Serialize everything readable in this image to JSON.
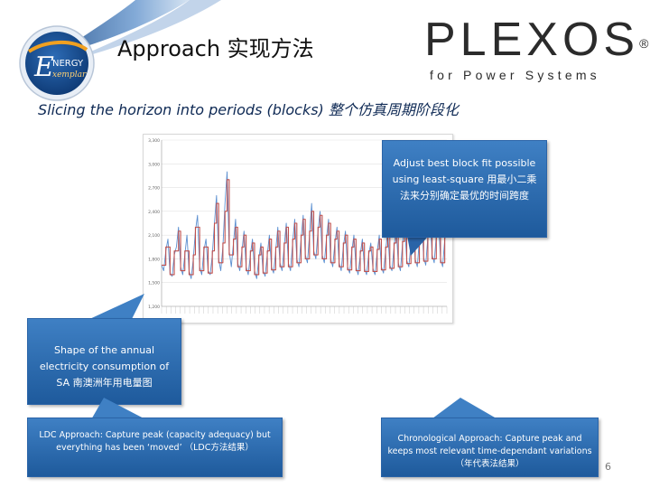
{
  "header": {
    "title": "Approach 实现方法",
    "logo_text_main": "NERGY",
    "logo_text_sub": "xemplar",
    "logo_letter": "E",
    "brand_name": "PLEXOS",
    "brand_reg": "®",
    "brand_tagline": "for Power Systems"
  },
  "subtitle": "Slicing the horizon into periods (blocks) 整个仿真周期阶段化",
  "callouts": {
    "best_fit": "Adjust best block fit possible using least-square 用最小二乘法来分别确定最优的时间跨度",
    "shape": "Shape of the annual electricity consumption of SA 南澳洲年用电量图",
    "ldc": "LDC Approach: Capture peak (capacity adequacy) but everything has been ‘moved’ （LDC方法结果）",
    "chrono": "Chronological Approach: Capture peak and keeps most relevant time-dependant variations （年代表法结果）"
  },
  "page_number": "6",
  "colors": {
    "callout_top": "#3f80c4",
    "callout_bottom": "#1e5a9c",
    "demand_line": "#5b8fd0",
    "block_line": "#c0504d"
  },
  "chart_data": {
    "type": "line",
    "title": "",
    "xlabel": "",
    "ylabel": "",
    "y_ticks": [
      "1,200",
      "1,500",
      "1,800",
      "2,100",
      "2,400",
      "2,700",
      "3,000",
      "3,300"
    ],
    "ylim": [
      1200,
      3300
    ],
    "grid": true,
    "series": [
      {
        "values": [
          1720,
          1650,
          1900,
          2050,
          1620,
          1580,
          1850,
          1950,
          2200,
          1700,
          1600,
          1850,
          2100,
          1650,
          1550,
          1800,
          2150,
          2350,
          1700,
          1600,
          1900,
          2050,
          1650,
          1600,
          1850,
          2250,
          2600,
          1800,
          1650,
          1950,
          2500,
          2900,
          1900,
          1700,
          2000,
          2300,
          1750,
          1650,
          1900,
          2150,
          1700,
          1600,
          1850,
          2050,
          1650,
          1550,
          1800,
          2000,
          1650,
          1580,
          1850,
          2100,
          1700,
          1620,
          1900,
          2200,
          1750,
          1650,
          1950,
          2250,
          1750,
          1650,
          2000,
          2300,
          1800,
          1700,
          2050,
          2350,
          1850,
          1750,
          2100,
          2500,
          1900,
          1800,
          2150,
          2400,
          1850,
          1750,
          2050,
          2300,
          1800,
          1700,
          2000,
          2200,
          1750,
          1650,
          1950,
          2150,
          1700,
          1620,
          1900,
          2100,
          1700,
          1600,
          1850,
          2050,
          1680,
          1600,
          1850,
          2000,
          1680,
          1600,
          1880,
          2100,
          1700,
          1620,
          1900,
          2150,
          1720,
          1650,
          1950,
          2200,
          1750,
          1650,
          1980,
          2250,
          1780,
          1700,
          2000,
          2300,
          1800,
          1700,
          2050,
          2350,
          1820,
          1720,
          2080,
          2400,
          1850,
          1750,
          2100,
          2300,
          1800,
          1700,
          2050,
          2200
        ]
      },
      {
        "values": [
          1720,
          1720,
          1950,
          1950,
          1600,
          1600,
          1900,
          1900,
          2150,
          1650,
          1650,
          1900,
          1900,
          1600,
          1600,
          1850,
          2200,
          2200,
          1650,
          1650,
          1950,
          1950,
          1620,
          1620,
          1900,
          2250,
          2500,
          1750,
          1750,
          2000,
          2400,
          2800,
          1850,
          1850,
          2050,
          2200,
          1700,
          1700,
          1950,
          2100,
          1650,
          1650,
          1900,
          2000,
          1600,
          1600,
          1850,
          1950,
          1620,
          1620,
          1900,
          2050,
          1660,
          1660,
          1950,
          2150,
          1700,
          1700,
          2000,
          2200,
          1700,
          1700,
          2050,
          2250,
          1750,
          1750,
          2100,
          2300,
          1800,
          1800,
          2150,
          2400,
          1850,
          1850,
          2200,
          2350,
          1800,
          1800,
          2100,
          2250,
          1750,
          1750,
          2050,
          2150,
          1700,
          1700,
          2000,
          2100,
          1660,
          1660,
          1950,
          2050,
          1650,
          1650,
          1900,
          2000,
          1640,
          1640,
          1900,
          1950,
          1640,
          1640,
          1920,
          2050,
          1660,
          1660,
          1950,
          2100,
          1680,
          1680,
          2000,
          2150,
          1700,
          1700,
          2020,
          2200,
          1740,
          1740,
          2050,
          2250,
          1750,
          1750,
          2100,
          2300,
          1770,
          1770,
          2120,
          2350,
          1800,
          1800,
          2150,
          2250,
          1750,
          1750,
          2100,
          2150
        ]
      }
    ],
    "x_tick_count": 62
  }
}
